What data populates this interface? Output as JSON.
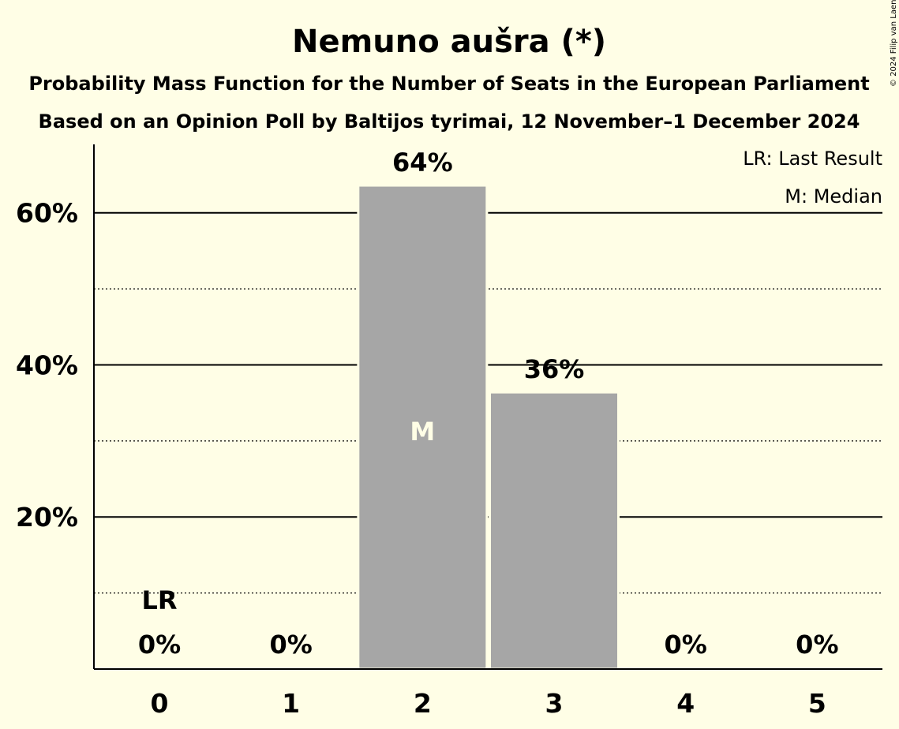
{
  "chart_data": {
    "type": "bar",
    "title": "Nemuno aušra (*)",
    "subtitle": "Probability Mass Function for the Number of Seats in the European Parliament",
    "subtitle2": "Based on an Opinion Poll by Baltijos tyrimai, 12 November–1 December 2024",
    "copyright": "© 2024 Filip van Laenen",
    "categories": [
      "0",
      "1",
      "2",
      "3",
      "4",
      "5"
    ],
    "values": [
      0,
      0,
      63.6,
      36.4,
      0,
      0
    ],
    "value_labels": [
      "0%",
      "0%",
      "64%",
      "36%",
      "0%",
      "0%"
    ],
    "ylim": [
      0,
      69
    ],
    "yticks": [
      20,
      40,
      60
    ],
    "ytick_labels": [
      "20%",
      "40%",
      "60%"
    ],
    "minor_gridlines": [
      10,
      30,
      50
    ],
    "median_index": 2,
    "median_marker": "M",
    "last_result_index": 0,
    "last_result_marker": "LR",
    "legend": [
      "LR: Last Result",
      "M: Median"
    ],
    "legend_position": "top-right",
    "colors": {
      "background": "#FFFEE6",
      "bar": "#A6A6A6",
      "median_text": "#FFFEE6",
      "text": "#000000"
    }
  }
}
